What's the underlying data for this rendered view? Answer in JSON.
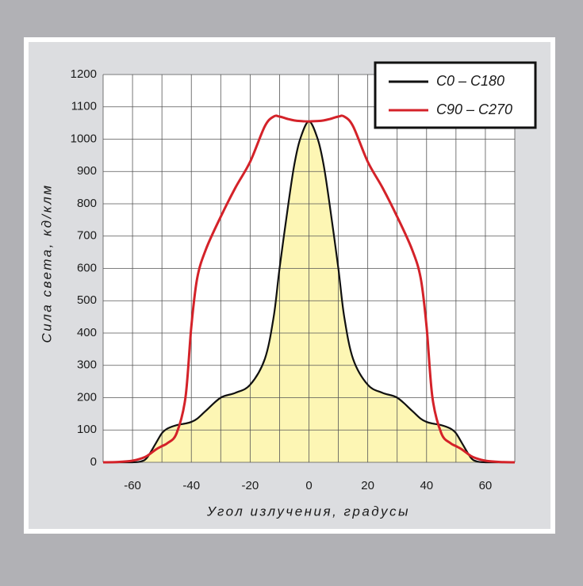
{
  "chart_data": {
    "type": "line",
    "x": [
      -70,
      -65,
      -60,
      -57,
      -55,
      -52,
      -50,
      -48,
      -45,
      -42,
      -40,
      -38,
      -35,
      -30,
      -25,
      -20,
      -15,
      -12,
      -10,
      -7,
      -5,
      -3,
      0,
      3,
      5,
      7,
      10,
      12,
      15,
      20,
      25,
      30,
      35,
      38,
      40,
      42,
      45,
      48,
      50,
      52,
      55,
      57,
      60,
      65,
      70
    ],
    "series": [
      {
        "name": "C0 – C180",
        "color": "#111111",
        "fill": "#fdf6b4",
        "values": [
          0,
          0,
          0,
          3,
          15,
          60,
          90,
          105,
          115,
          120,
          125,
          135,
          160,
          200,
          215,
          240,
          320,
          450,
          600,
          800,
          920,
          1000,
          1055,
          1000,
          920,
          800,
          600,
          450,
          320,
          240,
          215,
          200,
          160,
          135,
          125,
          120,
          115,
          105,
          90,
          60,
          15,
          3,
          0,
          0,
          0
        ]
      },
      {
        "name": "C90 – C270",
        "color": "#d42229",
        "values": [
          0,
          1,
          5,
          12,
          20,
          40,
          50,
          60,
          90,
          200,
          420,
          570,
          660,
          760,
          850,
          930,
          1040,
          1070,
          1070,
          1062,
          1058,
          1056,
          1055,
          1056,
          1058,
          1062,
          1070,
          1070,
          1040,
          930,
          850,
          760,
          660,
          570,
          420,
          200,
          90,
          60,
          50,
          40,
          20,
          12,
          5,
          1,
          0
        ]
      }
    ],
    "xlim": [
      -70,
      70
    ],
    "ylim": [
      0,
      1200
    ],
    "xticks": [
      -60,
      -40,
      -20,
      0,
      20,
      40,
      60
    ],
    "xgrid": [
      -70,
      -60,
      -50,
      -40,
      -30,
      -20,
      -10,
      0,
      10,
      20,
      30,
      40,
      50,
      60,
      70
    ],
    "yticks": [
      0,
      100,
      200,
      300,
      400,
      500,
      600,
      700,
      800,
      900,
      1000,
      1100,
      1200
    ],
    "xlabel": "Угол излучения, градусы",
    "ylabel": "Сила света, кд/клм",
    "grid": true,
    "legend": "upper right"
  }
}
